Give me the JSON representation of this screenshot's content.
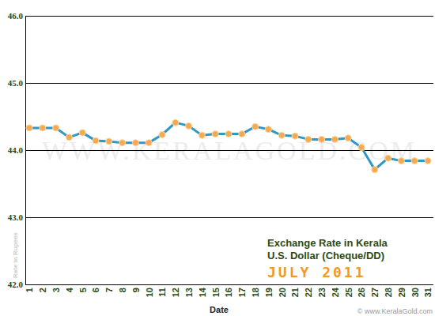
{
  "chart_data": {
    "type": "line",
    "title": "Exchange Rate in Kerala",
    "subtitle": "U.S. Dollar (Cheque/DD)",
    "annotations": [
      "JULY 2011",
      "WWW.KERALAGOLD.COM",
      "© www.KeralaGold.com"
    ],
    "x_label": "Date",
    "y_label": "Rate in Rupees",
    "categories": [
      "1",
      "2",
      "3",
      "4",
      "5",
      "6",
      "7",
      "8",
      "9",
      "10",
      "11",
      "12",
      "13",
      "14",
      "15",
      "16",
      "17",
      "18",
      "19",
      "20",
      "21",
      "22",
      "23",
      "24",
      "25",
      "26",
      "27",
      "28",
      "29",
      "30",
      "31"
    ],
    "values": [
      44.33,
      44.33,
      44.33,
      44.19,
      44.26,
      44.14,
      44.13,
      44.11,
      44.11,
      44.11,
      44.23,
      44.41,
      44.36,
      44.22,
      44.24,
      44.24,
      44.24,
      44.35,
      44.31,
      44.22,
      44.21,
      44.16,
      44.16,
      44.16,
      44.18,
      44.04,
      43.71,
      43.88,
      43.84,
      43.84,
      43.84
    ],
    "color": "#2f97c7",
    "marker": "circle",
    "line_style": "solid",
    "ylim": [
      42,
      46
    ],
    "yticks": [
      {
        "value": 42,
        "label": "42.0"
      },
      {
        "value": 43,
        "label": "43.0"
      },
      {
        "value": 44,
        "label": "44.0"
      },
      {
        "value": 45,
        "label": "45.0"
      },
      {
        "value": 46,
        "label": "46.0"
      }
    ],
    "grid": true
  }
}
